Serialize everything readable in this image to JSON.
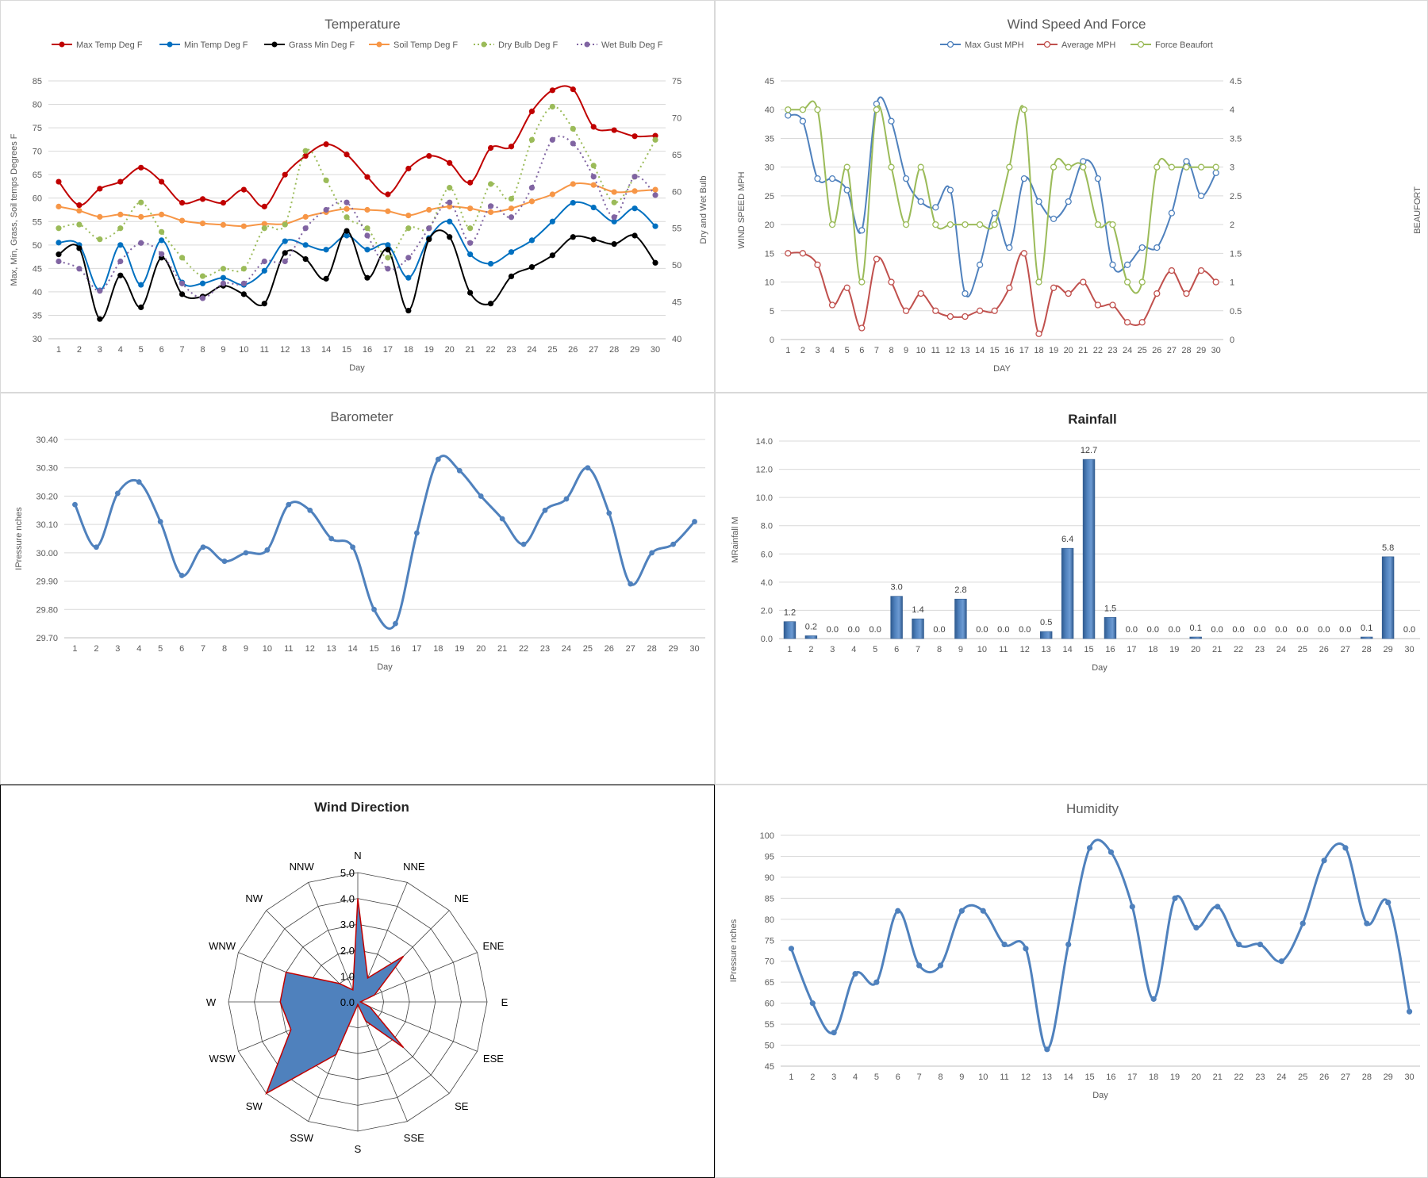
{
  "chart_data": [
    {
      "id": "temperature",
      "type": "line",
      "title": "Temperature",
      "xlabel": "Day",
      "ylabel": "Max, Min, Grass, Soil temps Degrees F",
      "y2label": "Dry and Wet Bulb",
      "x": [
        1,
        2,
        3,
        4,
        5,
        6,
        7,
        8,
        9,
        10,
        11,
        12,
        13,
        14,
        15,
        16,
        17,
        18,
        19,
        20,
        21,
        22,
        23,
        24,
        25,
        26,
        27,
        28,
        29,
        30
      ],
      "ylim": [
        30,
        85
      ],
      "yticks": [
        "30",
        "35",
        "40",
        "45",
        "50",
        "55",
        "60",
        "65",
        "70",
        "75",
        "80",
        "85"
      ],
      "y2lim": [
        40,
        75
      ],
      "y2ticks": [
        "40",
        "45",
        "50",
        "55",
        "60",
        "65",
        "70",
        "75"
      ],
      "legend": "top",
      "grid": true,
      "series": [
        {
          "name": "Max Temp Deg F",
          "axis": "left",
          "color": "#c00000",
          "dash": false,
          "values": [
            63.5,
            58.5,
            62,
            63.5,
            66.5,
            63.5,
            59,
            59.8,
            59,
            61.8,
            58.2,
            65,
            69,
            71.5,
            69.3,
            64.5,
            60.8,
            66.3,
            69,
            67.5,
            63.3,
            70.7,
            71,
            78.5,
            83,
            83.2,
            75.2,
            74.5,
            73.2,
            73.3
          ]
        },
        {
          "name": "Min Temp Deg F",
          "axis": "left",
          "color": "#0070c0",
          "dash": false,
          "values": [
            50.5,
            50,
            40.3,
            50,
            41.5,
            51,
            42,
            41.8,
            43,
            41.5,
            44.5,
            50.8,
            50,
            49,
            52,
            49,
            50,
            43,
            51.5,
            55,
            48,
            46,
            48.5,
            51,
            55,
            59,
            58,
            55,
            57.8,
            54
          ]
        },
        {
          "name": "Grass Min Deg F",
          "axis": "left",
          "color": "#000000",
          "dash": false,
          "values": [
            48,
            49.3,
            34.2,
            43.5,
            36.7,
            47.3,
            39.5,
            39,
            41.3,
            39.5,
            37.5,
            48.3,
            47,
            42.8,
            53,
            43,
            49,
            36,
            51.2,
            51.7,
            39.8,
            37.5,
            43.3,
            45.3,
            47.8,
            51.7,
            51.2,
            50.2,
            52,
            46.2
          ]
        },
        {
          "name": "Soil Temp Deg F",
          "axis": "left",
          "color": "#f79646",
          "dash": false,
          "values": [
            58.2,
            57.3,
            56,
            56.5,
            56,
            56.5,
            55.2,
            54.6,
            54.3,
            54,
            54.5,
            54.5,
            56,
            57,
            57.7,
            57.5,
            57.2,
            56.3,
            57.5,
            58.2,
            57.8,
            57,
            57.8,
            59.3,
            60.8,
            63,
            62.8,
            61.3,
            61.5,
            61.8
          ]
        },
        {
          "name": "Dry Bulb Deg F",
          "axis": "right",
          "color": "#9bbb59",
          "dash": true,
          "values": [
            55,
            55.5,
            53.5,
            55,
            58.5,
            54.5,
            51,
            48.5,
            49.5,
            49.5,
            55,
            55.5,
            65.5,
            61.5,
            56.5,
            55,
            51,
            55,
            55,
            60.5,
            55,
            61,
            59,
            67,
            71.5,
            68.5,
            63.5,
            58.5,
            62,
            67
          ]
        },
        {
          "name": "Wet Bulb Deg F",
          "axis": "right",
          "color": "#8064a2",
          "dash": true,
          "values": [
            50.5,
            49.5,
            46.5,
            50.5,
            53,
            51.5,
            47.5,
            45.5,
            47.5,
            47.5,
            50.5,
            50.5,
            55,
            57.5,
            58.5,
            54,
            49.5,
            51,
            55,
            58.5,
            53,
            58,
            56.5,
            60.5,
            67,
            66.5,
            62,
            56.5,
            62,
            59.5
          ]
        }
      ]
    },
    {
      "id": "wind",
      "type": "line",
      "title": "Wind Speed And Force",
      "xlabel": "DAY",
      "ylabel": "WIND SPEED MPH",
      "y2label": "BEAUFORT",
      "x": [
        1,
        2,
        3,
        4,
        5,
        6,
        7,
        8,
        9,
        10,
        11,
        12,
        13,
        14,
        15,
        16,
        17,
        18,
        19,
        20,
        21,
        22,
        23,
        24,
        25,
        26,
        27,
        28,
        29,
        30
      ],
      "ylim": [
        0,
        45
      ],
      "yticks": [
        "0",
        "5",
        "10",
        "15",
        "20",
        "25",
        "30",
        "35",
        "40",
        "45"
      ],
      "y2lim": [
        0,
        4.5
      ],
      "y2ticks": [
        "0",
        "0.5",
        "1",
        "1.5",
        "2",
        "2.5",
        "3",
        "3.5",
        "4",
        "4.5"
      ],
      "legend": "top",
      "grid": true,
      "series": [
        {
          "name": "Max Gust MPH",
          "axis": "left",
          "color": "#4f81bd",
          "values": [
            39,
            38,
            28,
            28,
            26,
            19,
            41,
            38,
            28,
            24,
            23,
            26,
            8,
            13,
            22,
            16,
            28,
            24,
            21,
            24,
            31,
            28,
            13,
            13,
            16,
            16,
            22,
            31,
            25,
            29
          ]
        },
        {
          "name": "Average MPH",
          "axis": "left",
          "color": "#c0504d",
          "values": [
            15,
            15,
            13,
            6,
            9,
            2,
            14,
            10,
            5,
            8,
            5,
            4,
            4,
            5,
            5,
            9,
            15,
            1,
            9,
            8,
            10,
            6,
            6,
            3,
            3,
            8,
            12,
            8,
            12,
            10
          ]
        },
        {
          "name": "Force Beaufort",
          "axis": "right",
          "color": "#9bbb59",
          "values": [
            4,
            4,
            4,
            2,
            3,
            1,
            4,
            3,
            2,
            3,
            2,
            2,
            2,
            2,
            2,
            3,
            4,
            1,
            3,
            3,
            3,
            2,
            2,
            1,
            1,
            3,
            3,
            3,
            3,
            3
          ]
        }
      ]
    },
    {
      "id": "barometer",
      "type": "line",
      "title": "Barometer",
      "xlabel": "Day",
      "ylabel": "IPressure nches",
      "x": [
        1,
        2,
        3,
        4,
        5,
        6,
        7,
        8,
        9,
        10,
        11,
        12,
        13,
        14,
        15,
        16,
        17,
        18,
        19,
        20,
        21,
        22,
        23,
        24,
        25,
        26,
        27,
        28,
        29,
        30
      ],
      "ylim": [
        29.7,
        30.4
      ],
      "yticks": [
        "29.70",
        "29.80",
        "29.90",
        "30.00",
        "30.10",
        "30.20",
        "30.30",
        "30.40"
      ],
      "grid": true,
      "series": [
        {
          "name": "",
          "color": "#4f81bd",
          "values": [
            30.17,
            30.02,
            30.21,
            30.25,
            30.11,
            29.92,
            30.02,
            29.97,
            30.0,
            30.01,
            30.17,
            30.15,
            30.05,
            30.02,
            29.8,
            29.75,
            30.07,
            30.33,
            30.29,
            30.2,
            30.12,
            30.03,
            30.15,
            30.19,
            30.3,
            30.14,
            29.89,
            30.0,
            30.03,
            30.11
          ]
        }
      ]
    },
    {
      "id": "rainfall",
      "type": "bar",
      "title": "Rainfall",
      "xlabel": "Day",
      "ylabel": "MRainfall M",
      "categories": [
        "1",
        "2",
        "3",
        "4",
        "5",
        "6",
        "7",
        "8",
        "9",
        "10",
        "11",
        "12",
        "13",
        "14",
        "15",
        "16",
        "17",
        "18",
        "19",
        "20",
        "21",
        "22",
        "23",
        "24",
        "25",
        "26",
        "27",
        "28",
        "29",
        "30"
      ],
      "values": [
        1.2,
        0.2,
        0.0,
        0.0,
        0.0,
        3.0,
        1.4,
        0.0,
        2.8,
        0.0,
        0.0,
        0.0,
        0.5,
        6.4,
        12.7,
        1.5,
        0.0,
        0.0,
        0.0,
        0.1,
        0.0,
        0.0,
        0.0,
        0.0,
        0.0,
        0.0,
        0.0,
        0.1,
        5.8,
        0.0
      ],
      "data_labels": [
        "1.2",
        "0.2",
        "0.0",
        "0.0",
        "0.0",
        "3.0",
        "1.4",
        "0.0",
        "2.8",
        "0.0",
        "0.0",
        "0.0",
        "0.5",
        "6.4",
        "12.7",
        "1.5",
        "0.0",
        "0.0",
        "0.0",
        "0.1",
        "0.0",
        "0.0",
        "0.0",
        "0.0",
        "0.0",
        "0.0",
        "0.0",
        "0.1",
        "5.8",
        "0.0"
      ],
      "ylim": [
        0,
        14
      ],
      "yticks": [
        "0.0",
        "2.0",
        "4.0",
        "6.0",
        "8.0",
        "10.0",
        "12.0",
        "14.0"
      ],
      "grid": true,
      "color": "#4f81bd"
    },
    {
      "id": "wind-direction",
      "type": "radar",
      "title": "Wind Direction",
      "categories": [
        "N",
        "NNE",
        "NE",
        "ENE",
        "E",
        "ESE",
        "SE",
        "SSE",
        "S",
        "SSW",
        "SW",
        "WSW",
        "W",
        "WNW",
        "NW",
        "NNW"
      ],
      "values": [
        4.0,
        1.0,
        2.5,
        0.7,
        0.1,
        0.5,
        2.5,
        0.8,
        0.1,
        2.2,
        5.0,
        2.8,
        3.0,
        3.0,
        1.0,
        0.5
      ],
      "rlim": [
        0,
        5
      ],
      "rticks": [
        "0.0",
        "1.0",
        "2.0",
        "3.0",
        "4.0",
        "5.0"
      ],
      "fill_color": "#4f81bd",
      "edge_color": "#c00000"
    },
    {
      "id": "humidity",
      "type": "line",
      "title": "Humidity",
      "xlabel": "Day",
      "ylabel": "IPressure nches",
      "x": [
        1,
        2,
        3,
        4,
        5,
        6,
        7,
        8,
        9,
        10,
        11,
        12,
        13,
        14,
        15,
        16,
        17,
        18,
        19,
        20,
        21,
        22,
        23,
        24,
        25,
        26,
        27,
        28,
        29,
        30
      ],
      "ylim": [
        45,
        100
      ],
      "yticks": [
        "45",
        "50",
        "55",
        "60",
        "65",
        "70",
        "75",
        "80",
        "85",
        "90",
        "95",
        "100"
      ],
      "grid": true,
      "series": [
        {
          "name": "",
          "color": "#4f81bd",
          "values": [
            73,
            60,
            53,
            67,
            65,
            82,
            69,
            69,
            82,
            82,
            74,
            73,
            49,
            74,
            97,
            96,
            83,
            61,
            85,
            78,
            83,
            74,
            74,
            70,
            79,
            94,
            97,
            79,
            84,
            58
          ]
        }
      ]
    }
  ]
}
